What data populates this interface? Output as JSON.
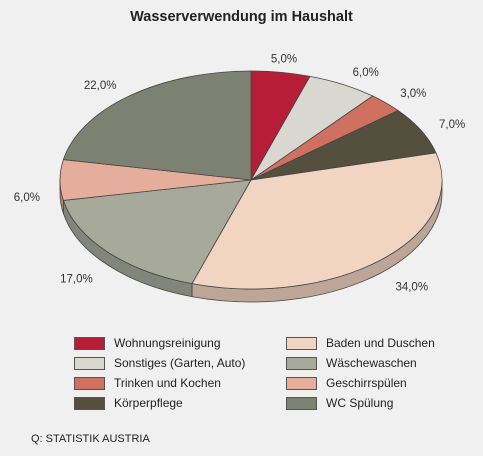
{
  "chart_data": {
    "type": "pie",
    "title": "Wasserverwendung im Haushalt",
    "slices": [
      {
        "label": "Wohnungsreinigung",
        "value": 5.0,
        "value_label": "5,0%",
        "color": "#b81d37"
      },
      {
        "label": "Sonstiges (Garten, Auto)",
        "value": 6.0,
        "value_label": "6,0%",
        "color": "#d8d8d0"
      },
      {
        "label": "Trinken und Kochen",
        "value": 3.0,
        "value_label": "3,0%",
        "color": "#d07060"
      },
      {
        "label": "Körperpflege",
        "value": 7.0,
        "value_label": "7,0%",
        "color": "#54503d"
      },
      {
        "label": "Baden und Duschen",
        "value": 34.0,
        "value_label": "34,0%",
        "color": "#f2d4c2"
      },
      {
        "label": "Wäschewaschen",
        "value": 17.0,
        "value_label": "17,0%",
        "color": "#a7aa9b"
      },
      {
        "label": "Geschirrspülen",
        "value": 6.0,
        "value_label": "6,0%",
        "color": "#e5ae9c"
      },
      {
        "label": "WC Spülung",
        "value": 22.0,
        "value_label": "22,0%",
        "color": "#7d8171"
      }
    ],
    "legend_order": [
      0,
      4,
      1,
      5,
      2,
      6,
      3,
      7
    ],
    "legend_position": "bottom"
  },
  "source": "Q: STATISTIK AUSTRIA"
}
